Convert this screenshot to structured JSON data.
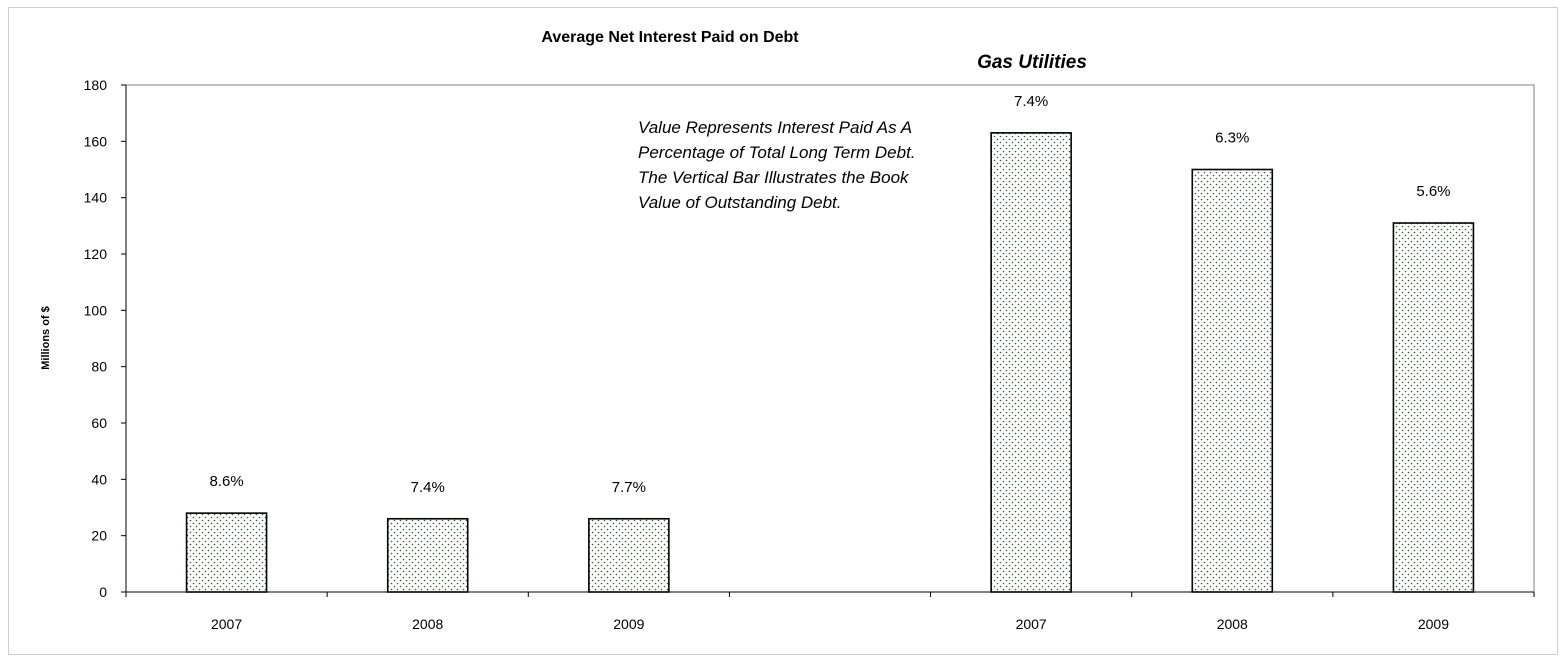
{
  "chart_data": {
    "type": "bar",
    "title": "Average Net Interest Paid on Debt",
    "subtitle": "Gas Utilities",
    "xlabel": "",
    "ylabel": "Millions of $",
    "ylim": [
      0,
      180
    ],
    "yticks": [
      0,
      20,
      40,
      60,
      80,
      100,
      120,
      140,
      160,
      180
    ],
    "grid": false,
    "categories": [
      "2007",
      "2008",
      "2009",
      "",
      "2007",
      "2008",
      "2009"
    ],
    "values": [
      28,
      26,
      26,
      null,
      163,
      150,
      131
    ],
    "data_labels": [
      "8.6%",
      "7.4%",
      "7.7%",
      "",
      "7.4%",
      "6.3%",
      "5.6%"
    ],
    "annotation": [
      "Value Represents Interest Paid As A",
      "Percentage of Total Long Term Debt.",
      "The Vertical Bar Illustrates the Book",
      "Value of Outstanding Debt."
    ],
    "bar_color": "#ffffff",
    "bar_dot_color": "#2e5e2e",
    "bar_border_color": "#000000"
  }
}
